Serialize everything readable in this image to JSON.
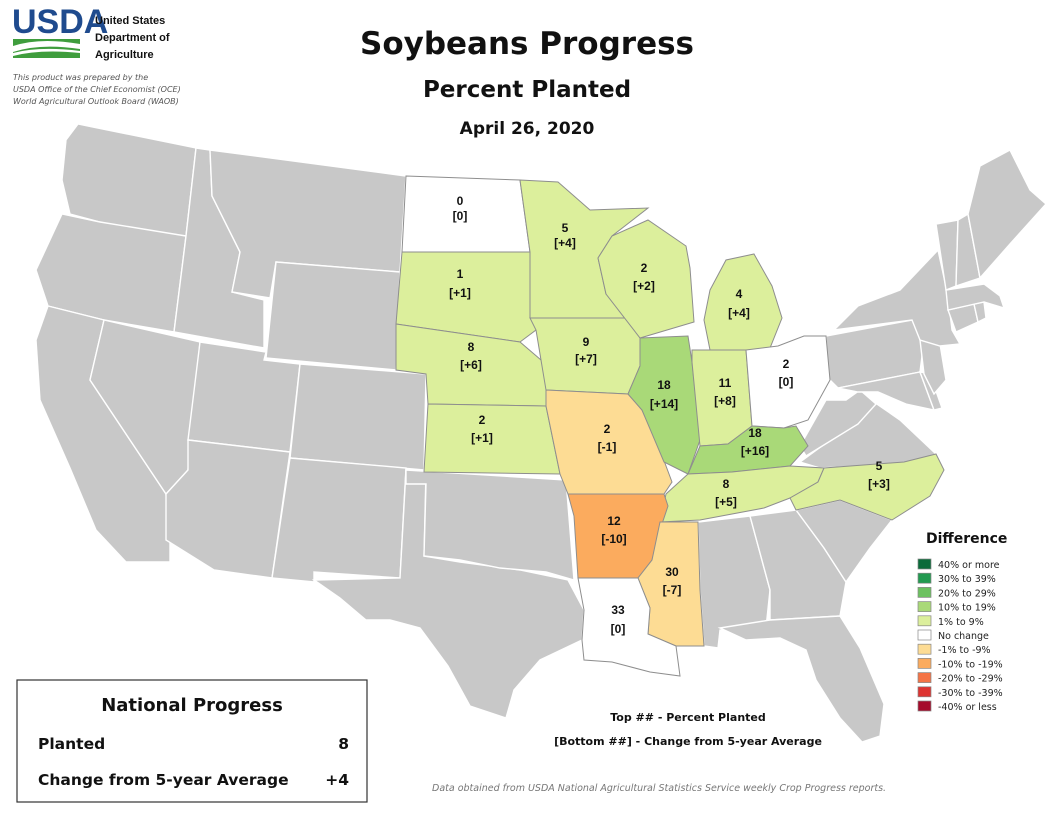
{
  "header": {
    "logo_text": "USDA",
    "agency_lines": [
      "United States",
      "Department of",
      "Agriculture"
    ],
    "prepared_lines": [
      "This product was prepared by the",
      "USDA Office of the Chief Economist (OCE)",
      "World Agricultural Outlook Board (WAOB)"
    ]
  },
  "map": {
    "title": "Soybeans Progress",
    "subtitle": "Percent Planted",
    "date": "April 26, 2020"
  },
  "states": [
    {
      "id": "ND",
      "top": "0",
      "bottom": "[0]",
      "category": "No change"
    },
    {
      "id": "MN",
      "top": "5",
      "bottom": "[+4]",
      "category": "1% to 9%"
    },
    {
      "id": "SD",
      "top": "1",
      "bottom": "[+1]",
      "category": "1% to 9%"
    },
    {
      "id": "WI",
      "top": "2",
      "bottom": "[+2]",
      "category": "1% to 9%"
    },
    {
      "id": "MI",
      "top": "4",
      "bottom": "[+4]",
      "category": "1% to 9%"
    },
    {
      "id": "NE",
      "top": "8",
      "bottom": "[+6]",
      "category": "1% to 9%"
    },
    {
      "id": "IA",
      "top": "9",
      "bottom": "[+7]",
      "category": "1% to 9%"
    },
    {
      "id": "IL",
      "top": "18",
      "bottom": "[+14]",
      "category": "10% to 19%"
    },
    {
      "id": "IN",
      "top": "11",
      "bottom": "[+8]",
      "category": "1% to 9%"
    },
    {
      "id": "OH",
      "top": "2",
      "bottom": "[0]",
      "category": "No change"
    },
    {
      "id": "KS",
      "top": "2",
      "bottom": "[+1]",
      "category": "1% to 9%"
    },
    {
      "id": "MO",
      "top": "2",
      "bottom": "[-1]",
      "category": "-1% to -9%"
    },
    {
      "id": "KY",
      "top": "18",
      "bottom": "[+16]",
      "category": "10% to 19%"
    },
    {
      "id": "TN",
      "top": "8",
      "bottom": "[+5]",
      "category": "1% to 9%"
    },
    {
      "id": "NC",
      "top": "5",
      "bottom": "[+3]",
      "category": "1% to 9%"
    },
    {
      "id": "AR",
      "top": "12",
      "bottom": "[-10]",
      "category": "-10% to -19%"
    },
    {
      "id": "MS",
      "top": "30",
      "bottom": "[-7]",
      "category": "-1% to -9%"
    },
    {
      "id": "LA",
      "top": "33",
      "bottom": "[0]",
      "category": "No change"
    }
  ],
  "legend": {
    "title": "Difference",
    "items": [
      {
        "label": "40% or more",
        "color": "#0b6b3a"
      },
      {
        "label": "30% to 39%",
        "color": "#229a50"
      },
      {
        "label": "20% to 29%",
        "color": "#6cc160"
      },
      {
        "label": "10% to 19%",
        "color": "#a9d978"
      },
      {
        "label": "1% to 9%",
        "color": "#dcef9c"
      },
      {
        "label": "No change",
        "color": "#ffffff"
      },
      {
        "label": "-1% to -9%",
        "color": "#fddc94"
      },
      {
        "label": "-10% to -19%",
        "color": "#fbab5e"
      },
      {
        "label": "-20% to -29%",
        "color": "#f47446"
      },
      {
        "label": "-30% to -39%",
        "color": "#dd3431"
      },
      {
        "label": "-40% or less",
        "color": "#a50b2b"
      }
    ]
  },
  "key": {
    "line1": "Top ## - Percent Planted",
    "line2": "[Bottom ##] - Change from 5-year Average"
  },
  "national_progress": {
    "title": "National Progress",
    "rows": [
      {
        "label": "Planted",
        "value": "8"
      },
      {
        "label": "Change from 5-year Average",
        "value": "+4"
      }
    ]
  },
  "source": "Data obtained from USDA National Agricultural Statistics Service weekly Crop Progress reports.",
  "colors": {
    "usda_blue": "#1f4b8e",
    "usda_green": "#3f9d3d",
    "non_reporting_state": "#c8c8c8"
  }
}
